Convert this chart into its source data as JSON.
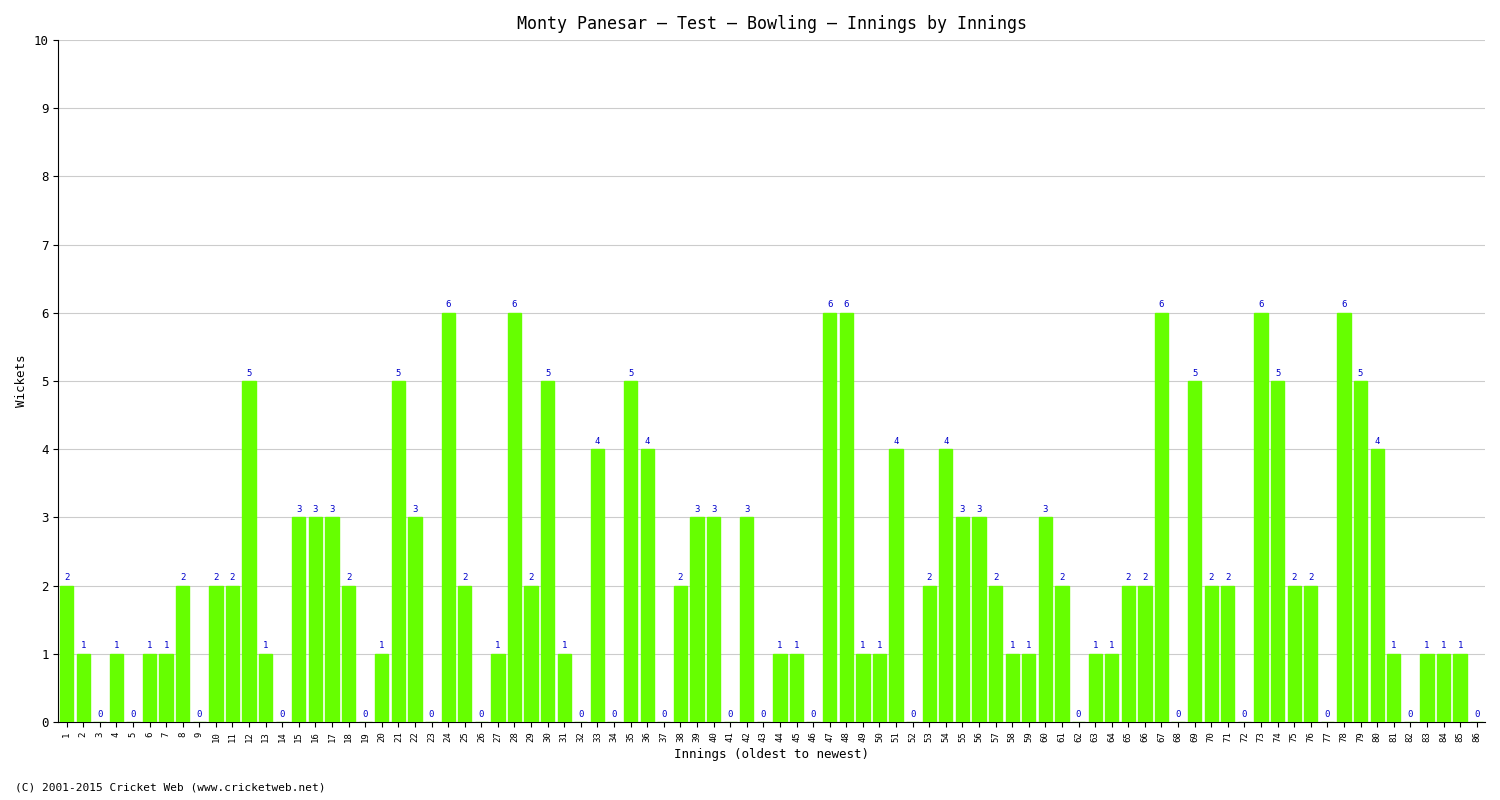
{
  "title": "Monty Panesar – Test – Bowling – Innings by Innings",
  "xlabel": "Innings (oldest to newest)",
  "ylabel": "Wickets",
  "ylim": [
    0,
    10
  ],
  "yticks": [
    0,
    1,
    2,
    3,
    4,
    5,
    6,
    7,
    8,
    9,
    10
  ],
  "bar_color": "#66ff00",
  "label_color": "#0000cc",
  "background_color": "#ffffff",
  "grid_color": "#cccccc",
  "footer": "(C) 2001-2015 Cricket Web (www.cricketweb.net)",
  "innings_labels": [
    "1",
    "2",
    "3",
    "4",
    "5",
    "6",
    "7",
    "8",
    "9",
    "10",
    "11",
    "12",
    "13",
    "14",
    "15",
    "16",
    "17",
    "18",
    "19",
    "20",
    "21",
    "22",
    "23",
    "24",
    "25",
    "26",
    "27",
    "28",
    "29",
    "30",
    "31",
    "32",
    "33",
    "34",
    "35",
    "36",
    "37",
    "38",
    "39",
    "40",
    "41",
    "42",
    "43",
    "44",
    "45",
    "46",
    "47",
    "48",
    "49",
    "50",
    "51",
    "52",
    "53",
    "54",
    "55",
    "56",
    "57",
    "58",
    "59",
    "60",
    "61",
    "62",
    "63",
    "64",
    "65",
    "66",
    "67",
    "68",
    "69",
    "70",
    "71",
    "72",
    "73",
    "74",
    "75",
    "76",
    "77",
    "78",
    "79",
    "80",
    "81",
    "82",
    "83",
    "84",
    "85",
    "86"
  ],
  "wickets": [
    2,
    1,
    0,
    1,
    0,
    1,
    1,
    2,
    0,
    2,
    2,
    5,
    1,
    0,
    3,
    3,
    3,
    2,
    0,
    1,
    5,
    3,
    0,
    6,
    2,
    0,
    1,
    6,
    2,
    5,
    1,
    0,
    4,
    0,
    5,
    4,
    0,
    2,
    3,
    3,
    0,
    3,
    0,
    1,
    1,
    0,
    6,
    6,
    1,
    1,
    4,
    0,
    2,
    4,
    3,
    3,
    2,
    1,
    1,
    3,
    2,
    0,
    1,
    1,
    2,
    2,
    6,
    0,
    5,
    2,
    2,
    0,
    6,
    5,
    2,
    2,
    0,
    6,
    5,
    4,
    1,
    0,
    1,
    1,
    1,
    0
  ]
}
